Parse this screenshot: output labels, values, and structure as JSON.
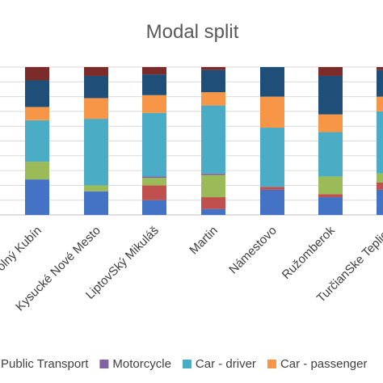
{
  "chart_data": {
    "type": "bar",
    "stacked": true,
    "title": "Modal split",
    "xlabel": "",
    "ylabel": "",
    "ylim": [
      0,
      100
    ],
    "grid": true,
    "legend_position": "bottom",
    "categories": [
      "Dolný Kubín",
      "Kysucké Nové Mesto",
      "LiptovSký Mikuláš",
      "Martin",
      "Námestovo",
      "Ružomberok",
      "TurčianSke Teplice"
    ],
    "series": [
      {
        "name": "Public Transport",
        "color": "#4472C4",
        "values": [
          24,
          16,
          10,
          4,
          17,
          12,
          17
        ]
      },
      {
        "name": "",
        "color": "#C0504D",
        "values": [
          0,
          0,
          10,
          8,
          2,
          2,
          5
        ]
      },
      {
        "name": "",
        "color": "#9BBB59",
        "values": [
          12,
          4,
          5,
          15,
          0,
          12,
          6
        ]
      },
      {
        "name": "Motorcycle",
        "color": "#8064A2",
        "values": [
          0,
          0,
          1,
          1,
          0,
          0,
          0
        ]
      },
      {
        "name": "Car - driver",
        "color": "#4BACC6",
        "values": [
          28,
          45,
          43,
          46,
          40,
          30,
          42
        ]
      },
      {
        "name": "Car - passenger",
        "color": "#F79646",
        "values": [
          9,
          14,
          12,
          9,
          21,
          12,
          10
        ]
      },
      {
        "name": "",
        "color": "#1F4E79",
        "values": [
          18,
          15,
          14,
          15,
          20,
          26,
          18
        ]
      },
      {
        "name": "",
        "color": "#7B2C2A",
        "values": [
          9,
          6,
          5,
          2,
          0,
          6,
          2
        ]
      }
    ],
    "legend_entries": [
      {
        "label": "Public Transport",
        "color": "#4472C4"
      },
      {
        "label": "Motorcycle",
        "color": "#8064A2"
      },
      {
        "label": "Car - driver",
        "color": "#4BACC6"
      },
      {
        "label": "Car - passenger",
        "color": "#F79646"
      }
    ]
  }
}
